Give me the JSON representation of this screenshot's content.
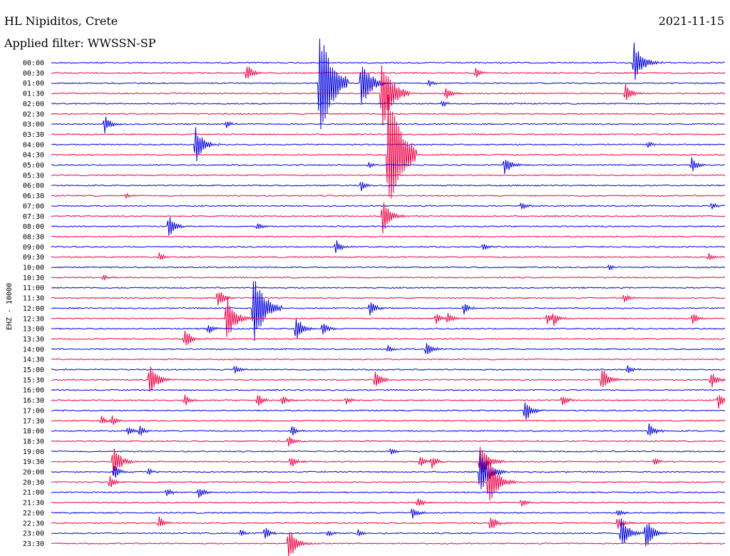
{
  "header": {
    "station": "HL Nipiditos, Crete",
    "date": "2021-11-15",
    "filter": "Applied filter: WWSSN-SP"
  },
  "colors": {
    "blue": "#0000dd",
    "red": "#ee0044",
    "text": "#000000"
  },
  "chart_data": {
    "type": "line",
    "title": "HL Nipiditos, Crete",
    "subtitle": "Applied filter: WWSSN-SP",
    "ylabel": "EHZ - 10000",
    "row_labels": [
      "00:00",
      "00:30",
      "01:00",
      "01:30",
      "02:00",
      "02:30",
      "03:00",
      "03:30",
      "04:00",
      "04:30",
      "05:00",
      "05:30",
      "06:00",
      "06:30",
      "07:00",
      "07:30",
      "08:00",
      "08:30",
      "09:00",
      "09:30",
      "10:00",
      "10:30",
      "11:00",
      "11:30",
      "12:00",
      "12:30",
      "13:00",
      "13:30",
      "14:00",
      "14:30",
      "15:00",
      "15:30",
      "16:00",
      "16:30",
      "17:00",
      "17:30",
      "18:00",
      "18:30",
      "19:00",
      "19:30",
      "20:00",
      "20:30",
      "21:00",
      "21:30",
      "22:00",
      "22:30",
      "23:00",
      "23:30"
    ],
    "row_colors": [
      "blue",
      "red"
    ],
    "events": [
      {
        "row": 0,
        "x": 0.865,
        "amp": 3.2
      },
      {
        "row": 1,
        "x": 0.29,
        "amp": 1.4
      },
      {
        "row": 1,
        "x": 0.63,
        "amp": 0.8
      },
      {
        "row": 2,
        "x": 0.398,
        "amp": 8.0
      },
      {
        "row": 2,
        "x": 0.46,
        "amp": 4.0
      },
      {
        "row": 2,
        "x": 0.56,
        "amp": 0.6
      },
      {
        "row": 3,
        "x": 0.49,
        "amp": 5.5
      },
      {
        "row": 3,
        "x": 0.585,
        "amp": 1.0
      },
      {
        "row": 3,
        "x": 0.852,
        "amp": 1.4
      },
      {
        "row": 4,
        "x": 0.58,
        "amp": 0.6
      },
      {
        "row": 6,
        "x": 0.079,
        "amp": 1.4
      },
      {
        "row": 6,
        "x": 0.26,
        "amp": 0.6
      },
      {
        "row": 8,
        "x": 0.214,
        "amp": 2.8
      },
      {
        "row": 8,
        "x": 0.885,
        "amp": 0.5
      },
      {
        "row": 9,
        "x": 0.5,
        "amp": 9.0
      },
      {
        "row": 10,
        "x": 0.47,
        "amp": 0.6
      },
      {
        "row": 10,
        "x": 0.672,
        "amp": 1.6
      },
      {
        "row": 10,
        "x": 0.95,
        "amp": 1.2
      },
      {
        "row": 12,
        "x": 0.46,
        "amp": 0.8
      },
      {
        "row": 13,
        "x": 0.11,
        "amp": 0.5
      },
      {
        "row": 14,
        "x": 0.697,
        "amp": 0.7
      },
      {
        "row": 14,
        "x": 0.98,
        "amp": 0.6
      },
      {
        "row": 15,
        "x": 0.492,
        "amp": 2.6
      },
      {
        "row": 16,
        "x": 0.174,
        "amp": 1.8
      },
      {
        "row": 16,
        "x": 0.305,
        "amp": 0.6
      },
      {
        "row": 18,
        "x": 0.422,
        "amp": 1.1
      },
      {
        "row": 18,
        "x": 0.64,
        "amp": 0.6
      },
      {
        "row": 19,
        "x": 0.16,
        "amp": 0.7
      },
      {
        "row": 19,
        "x": 0.975,
        "amp": 0.7
      },
      {
        "row": 20,
        "x": 0.827,
        "amp": 0.6
      },
      {
        "row": 21,
        "x": 0.077,
        "amp": 0.6
      },
      {
        "row": 23,
        "x": 0.247,
        "amp": 1.6
      },
      {
        "row": 23,
        "x": 0.85,
        "amp": 0.8
      },
      {
        "row": 24,
        "x": 0.3,
        "amp": 5.5
      },
      {
        "row": 24,
        "x": 0.473,
        "amp": 1.3
      },
      {
        "row": 24,
        "x": 0.612,
        "amp": 1.0
      },
      {
        "row": 25,
        "x": 0.26,
        "amp": 3.5
      },
      {
        "row": 25,
        "x": 0.57,
        "amp": 0.9
      },
      {
        "row": 25,
        "x": 0.588,
        "amp": 0.9
      },
      {
        "row": 25,
        "x": 0.735,
        "amp": 1.0
      },
      {
        "row": 25,
        "x": 0.745,
        "amp": 1.0
      },
      {
        "row": 25,
        "x": 0.952,
        "amp": 1.0
      },
      {
        "row": 26,
        "x": 0.232,
        "amp": 0.9
      },
      {
        "row": 26,
        "x": 0.362,
        "amp": 2.2
      },
      {
        "row": 26,
        "x": 0.402,
        "amp": 1.2
      },
      {
        "row": 27,
        "x": 0.198,
        "amp": 1.6
      },
      {
        "row": 28,
        "x": 0.556,
        "amp": 1.4
      },
      {
        "row": 28,
        "x": 0.5,
        "amp": 0.5
      },
      {
        "row": 30,
        "x": 0.272,
        "amp": 0.8
      },
      {
        "row": 30,
        "x": 0.855,
        "amp": 0.8
      },
      {
        "row": 31,
        "x": 0.146,
        "amp": 2.5
      },
      {
        "row": 31,
        "x": 0.48,
        "amp": 1.6
      },
      {
        "row": 31,
        "x": 0.817,
        "amp": 2.0
      },
      {
        "row": 31,
        "x": 0.978,
        "amp": 1.5
      },
      {
        "row": 33,
        "x": 0.198,
        "amp": 0.9
      },
      {
        "row": 33,
        "x": 0.306,
        "amp": 1.1
      },
      {
        "row": 33,
        "x": 0.342,
        "amp": 0.9
      },
      {
        "row": 33,
        "x": 0.437,
        "amp": 0.7
      },
      {
        "row": 33,
        "x": 0.758,
        "amp": 1.0
      },
      {
        "row": 33,
        "x": 0.99,
        "amp": 1.4
      },
      {
        "row": 34,
        "x": 0.703,
        "amp": 1.8
      },
      {
        "row": 35,
        "x": 0.074,
        "amp": 0.8
      },
      {
        "row": 35,
        "x": 0.09,
        "amp": 0.8
      },
      {
        "row": 36,
        "x": 0.113,
        "amp": 0.8
      },
      {
        "row": 36,
        "x": 0.131,
        "amp": 0.8
      },
      {
        "row": 36,
        "x": 0.357,
        "amp": 0.8
      },
      {
        "row": 36,
        "x": 0.886,
        "amp": 1.4
      },
      {
        "row": 37,
        "x": 0.352,
        "amp": 1.0
      },
      {
        "row": 38,
        "x": 0.504,
        "amp": 0.6
      },
      {
        "row": 39,
        "x": 0.092,
        "amp": 2.5
      },
      {
        "row": 39,
        "x": 0.354,
        "amp": 1.2
      },
      {
        "row": 39,
        "x": 0.547,
        "amp": 0.9
      },
      {
        "row": 39,
        "x": 0.565,
        "amp": 0.9
      },
      {
        "row": 39,
        "x": 0.636,
        "amp": 2.8
      },
      {
        "row": 39,
        "x": 0.894,
        "amp": 0.7
      },
      {
        "row": 40,
        "x": 0.093,
        "amp": 1.2
      },
      {
        "row": 40,
        "x": 0.143,
        "amp": 0.6
      },
      {
        "row": 40,
        "x": 0.636,
        "amp": 4.0
      },
      {
        "row": 41,
        "x": 0.086,
        "amp": 1.3
      },
      {
        "row": 41,
        "x": 0.648,
        "amp": 4.0
      },
      {
        "row": 42,
        "x": 0.17,
        "amp": 0.8
      },
      {
        "row": 42,
        "x": 0.218,
        "amp": 1.0
      },
      {
        "row": 43,
        "x": 0.543,
        "amp": 0.9
      },
      {
        "row": 43,
        "x": 0.697,
        "amp": 0.8
      },
      {
        "row": 44,
        "x": 0.536,
        "amp": 1.0
      },
      {
        "row": 44,
        "x": 0.84,
        "amp": 0.8
      },
      {
        "row": 45,
        "x": 0.16,
        "amp": 1.0
      },
      {
        "row": 45,
        "x": 0.651,
        "amp": 1.5
      },
      {
        "row": 45,
        "x": 0.84,
        "amp": 1.1
      },
      {
        "row": 46,
        "x": 0.28,
        "amp": 0.6
      },
      {
        "row": 46,
        "x": 0.316,
        "amp": 1.1
      },
      {
        "row": 46,
        "x": 0.41,
        "amp": 0.6
      },
      {
        "row": 46,
        "x": 0.455,
        "amp": 0.6
      },
      {
        "row": 46,
        "x": 0.846,
        "amp": 2.6
      },
      {
        "row": 46,
        "x": 0.882,
        "amp": 2.6
      },
      {
        "row": 47,
        "x": 0.352,
        "amp": 2.6
      }
    ]
  }
}
